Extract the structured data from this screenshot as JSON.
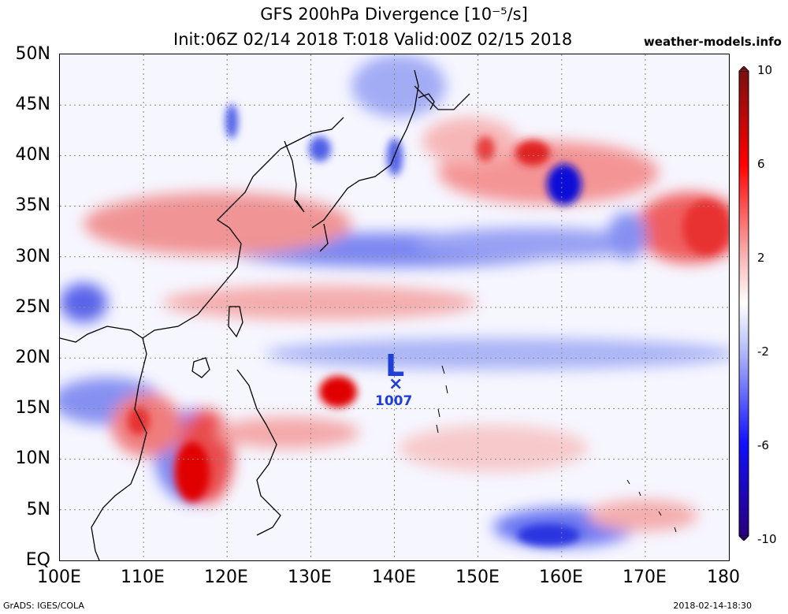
{
  "title": {
    "line1": "GFS 200hPa Divergence [10⁻⁵/s]",
    "line2": "Init:06Z 02/14 2018 T:018 Valid:00Z 02/15 2018",
    "site": "weather-models.info"
  },
  "axes": {
    "y_labels": [
      "50N",
      "45N",
      "40N",
      "35N",
      "30N",
      "25N",
      "20N",
      "15N",
      "10N",
      "5N",
      "EQ"
    ],
    "x_labels": [
      "100E",
      "110E",
      "120E",
      "130E",
      "140E",
      "150E",
      "160E",
      "170E",
      "180"
    ],
    "lat_range": [
      0,
      50
    ],
    "lon_range": [
      100,
      180
    ]
  },
  "colorbar": {
    "labels": [
      "10",
      "6",
      "2",
      "-2",
      "-6",
      "-10"
    ],
    "values": [
      10,
      6,
      2,
      -2,
      -6,
      -10
    ],
    "colors": [
      "#7a1010",
      "#ff0000",
      "#ffffff",
      "#2020ff",
      "#2a007a"
    ]
  },
  "low_center": {
    "letter": "L",
    "marker": "×",
    "pressure": "1007"
  },
  "footer": {
    "left": "GrADS: IGES/COLA",
    "right": "2018-02-14-18:30"
  }
}
